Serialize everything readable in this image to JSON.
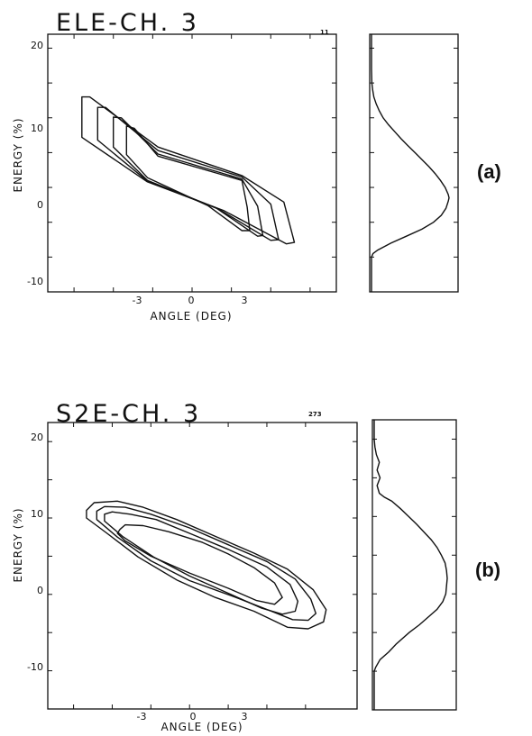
{
  "chart_data": [
    {
      "type": "contour",
      "panel_label": "(a)",
      "title": "ELE-CH. 3",
      "tag": "11",
      "xlabel": "ANGLE (DEG)",
      "ylabel": "ENERGY (%)",
      "xlim": [
        -5.5,
        5.5
      ],
      "ylim": [
        -15,
        22
      ],
      "xticks": [
        -3,
        0,
        3
      ],
      "yticks": [
        -10,
        0,
        10,
        20
      ],
      "contours": [
        {
          "level": "outer",
          "points": [
            [
              -4.2,
              13.0
            ],
            [
              -3.9,
              13.0
            ],
            [
              -1.3,
              5.8
            ],
            [
              1.9,
              1.7
            ],
            [
              3.5,
              -2.1
            ],
            [
              3.9,
              -7.9
            ],
            [
              3.6,
              -8.1
            ],
            [
              1.2,
              -3.3
            ],
            [
              -1.7,
              0.8
            ],
            [
              -4.2,
              7.2
            ]
          ]
        },
        {
          "level": "mid",
          "points": [
            [
              -3.6,
              11.5
            ],
            [
              -3.3,
              11.5
            ],
            [
              -1.3,
              5.3
            ],
            [
              1.9,
              1.5
            ],
            [
              3.0,
              -2.4
            ],
            [
              3.3,
              -7.5
            ],
            [
              3.0,
              -7.6
            ],
            [
              1.0,
              -3.1
            ],
            [
              -1.7,
              0.9
            ],
            [
              -3.6,
              6.8
            ]
          ]
        },
        {
          "level": "inner",
          "points": [
            [
              -3.0,
              10.1
            ],
            [
              -2.7,
              10.0
            ],
            [
              -1.3,
              4.8
            ],
            [
              1.9,
              1.2
            ],
            [
              2.5,
              -2.7
            ],
            [
              2.7,
              -6.9
            ],
            [
              2.5,
              -7.0
            ],
            [
              0.9,
              -2.9
            ],
            [
              -1.7,
              1.0
            ],
            [
              -3.0,
              5.8
            ]
          ]
        },
        {
          "level": "core",
          "points": [
            [
              -2.5,
              8.8
            ],
            [
              -2.2,
              8.5
            ],
            [
              -1.3,
              4.5
            ],
            [
              1.9,
              1.0
            ],
            [
              2.1,
              -2.8
            ],
            [
              2.2,
              -6.2
            ],
            [
              1.9,
              -6.2
            ],
            [
              0.6,
              -2.6
            ],
            [
              -1.7,
              1.4
            ],
            [
              -2.5,
              4.7
            ]
          ]
        }
      ],
      "projection": {
        "y": [
          -15,
          -10,
          -9.5,
          -9,
          -8,
          -7,
          -6,
          -5,
          -4,
          -3,
          -2,
          -1.5,
          -1,
          0,
          1,
          2,
          3,
          4,
          5,
          6,
          7,
          8,
          9,
          10,
          11,
          12,
          13,
          14,
          15,
          17,
          20,
          22
        ],
        "value": [
          0,
          0,
          0.02,
          0.08,
          0.25,
          0.45,
          0.65,
          0.8,
          0.9,
          0.96,
          0.99,
          1.0,
          0.99,
          0.95,
          0.89,
          0.82,
          0.74,
          0.65,
          0.56,
          0.47,
          0.38,
          0.3,
          0.22,
          0.15,
          0.1,
          0.06,
          0.03,
          0.015,
          0.005,
          0,
          0,
          0
        ]
      }
    },
    {
      "type": "contour",
      "panel_label": "(b)",
      "title": "S2E-CH. 3",
      "tag": "273",
      "xlabel": "ANGLE (DEG)",
      "ylabel": "ENERGY (%)",
      "xlim": [
        -5.5,
        6.5
      ],
      "ylim": [
        -15,
        22.5
      ],
      "xticks": [
        -3,
        0,
        3
      ],
      "yticks": [
        -10,
        0,
        10,
        20
      ],
      "contours": [
        {
          "level": "outer",
          "points": [
            [
              -4.0,
              11.0
            ],
            [
              -3.7,
              12.0
            ],
            [
              -2.8,
              12.2
            ],
            [
              -1.8,
              11.4
            ],
            [
              -0.5,
              9.8
            ],
            [
              1.0,
              7.6
            ],
            [
              2.5,
              5.4
            ],
            [
              3.8,
              3.3
            ],
            [
              4.8,
              0.6
            ],
            [
              5.3,
              -2.0
            ],
            [
              5.2,
              -3.6
            ],
            [
              4.6,
              -4.5
            ],
            [
              3.8,
              -4.3
            ],
            [
              2.5,
              -2.2
            ],
            [
              1.0,
              -0.4
            ],
            [
              -0.5,
              1.9
            ],
            [
              -2.0,
              4.9
            ],
            [
              -3.2,
              8.0
            ],
            [
              -4.0,
              10.0
            ]
          ]
        },
        {
          "level": "mid",
          "points": [
            [
              -3.6,
              10.9
            ],
            [
              -3.3,
              11.5
            ],
            [
              -2.5,
              11.4
            ],
            [
              -1.5,
              10.5
            ],
            [
              0.0,
              8.7
            ],
            [
              1.5,
              6.5
            ],
            [
              3.0,
              4.3
            ],
            [
              4.1,
              2.0
            ],
            [
              4.7,
              -0.6
            ],
            [
              4.9,
              -2.5
            ],
            [
              4.6,
              -3.4
            ],
            [
              4.0,
              -3.3
            ],
            [
              3.1,
              -2.1
            ],
            [
              1.8,
              -0.4
            ],
            [
              0.0,
              1.8
            ],
            [
              -1.5,
              4.4
            ],
            [
              -2.8,
              7.5
            ],
            [
              -3.6,
              9.8
            ]
          ]
        },
        {
          "level": "inner",
          "points": [
            [
              -3.3,
              10.5
            ],
            [
              -3.0,
              10.8
            ],
            [
              -2.3,
              10.5
            ],
            [
              -1.3,
              9.8
            ],
            [
              0.0,
              8.0
            ],
            [
              1.5,
              5.9
            ],
            [
              3.0,
              3.6
            ],
            [
              3.9,
              1.3
            ],
            [
              4.2,
              -0.9
            ],
            [
              4.1,
              -2.2
            ],
            [
              3.6,
              -2.6
            ],
            [
              2.8,
              -1.8
            ],
            [
              1.6,
              0.0
            ],
            [
              0.0,
              2.4
            ],
            [
              -1.4,
              4.9
            ],
            [
              -2.6,
              7.6
            ],
            [
              -3.3,
              9.6
            ]
          ]
        },
        {
          "level": "core",
          "points": [
            [
              -2.7,
              8.5
            ],
            [
              -2.5,
              9.1
            ],
            [
              -1.8,
              9.0
            ],
            [
              -0.8,
              8.2
            ],
            [
              0.5,
              6.8
            ],
            [
              1.5,
              5.3
            ],
            [
              2.5,
              3.5
            ],
            [
              3.3,
              1.5
            ],
            [
              3.6,
              -0.4
            ],
            [
              3.3,
              -1.3
            ],
            [
              2.6,
              -0.8
            ],
            [
              1.5,
              0.8
            ],
            [
              0.0,
              2.8
            ],
            [
              -1.5,
              5.0
            ],
            [
              -2.5,
              7.0
            ],
            [
              -2.8,
              8.0
            ]
          ]
        }
      ],
      "projection": {
        "y": [
          -15,
          -10,
          -9.5,
          -8.5,
          -7.5,
          -6.5,
          -5,
          -4,
          -3,
          -2,
          -1,
          0,
          1,
          2,
          3,
          4,
          5,
          6,
          7,
          8,
          9,
          10,
          11,
          12,
          12.5,
          13,
          14,
          15,
          16,
          17,
          18,
          19,
          20,
          22.5
        ],
        "value": [
          0,
          0,
          0.02,
          0.08,
          0.2,
          0.3,
          0.48,
          0.62,
          0.74,
          0.86,
          0.94,
          0.98,
          0.99,
          1.0,
          0.99,
          0.97,
          0.92,
          0.86,
          0.78,
          0.68,
          0.58,
          0.47,
          0.36,
          0.24,
          0.14,
          0.07,
          0.04,
          0.08,
          0.04,
          0.07,
          0.03,
          0.01,
          0,
          0
        ]
      }
    }
  ]
}
